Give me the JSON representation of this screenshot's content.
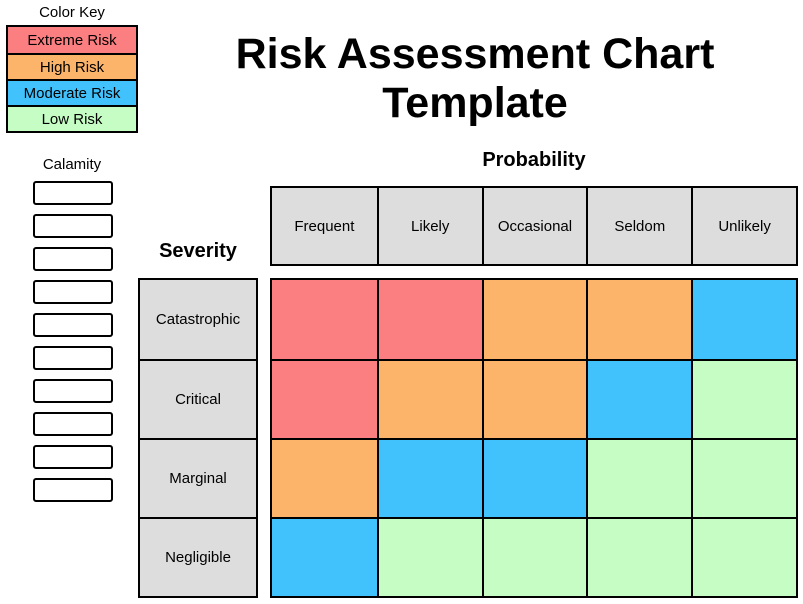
{
  "page": {
    "title_line1": "Risk Assessment Chart",
    "title_line2": "Template"
  },
  "color_key": {
    "title": "Color Key",
    "items": [
      {
        "label": "Extreme Risk",
        "level": "extreme",
        "color": "#FB7E81"
      },
      {
        "label": "High Risk",
        "level": "high",
        "color": "#FCB46A"
      },
      {
        "label": "Moderate Risk",
        "level": "moderate",
        "color": "#42C2FC"
      },
      {
        "label": "Low Risk",
        "level": "low",
        "color": "#C5FDC5"
      }
    ]
  },
  "calamity": {
    "label": "Calamity",
    "box_count": 10
  },
  "matrix": {
    "probability_label": "Probability",
    "severity_label": "Severity",
    "columns": [
      "Frequent",
      "Likely",
      "Occasional",
      "Seldom",
      "Unlikely"
    ],
    "rows": [
      "Catastrophic",
      "Critical",
      "Marginal",
      "Negligible"
    ],
    "header_bg": "#DDDDDD",
    "risk_colors": {
      "extreme": "#FB7E81",
      "high": "#FCB46A",
      "moderate": "#42C2FC",
      "low": "#C5FDC5"
    },
    "cells": [
      [
        "extreme",
        "extreme",
        "high",
        "high",
        "moderate"
      ],
      [
        "extreme",
        "high",
        "high",
        "moderate",
        "low"
      ],
      [
        "high",
        "moderate",
        "moderate",
        "low",
        "low"
      ],
      [
        "moderate",
        "low",
        "low",
        "low",
        "low"
      ]
    ]
  }
}
